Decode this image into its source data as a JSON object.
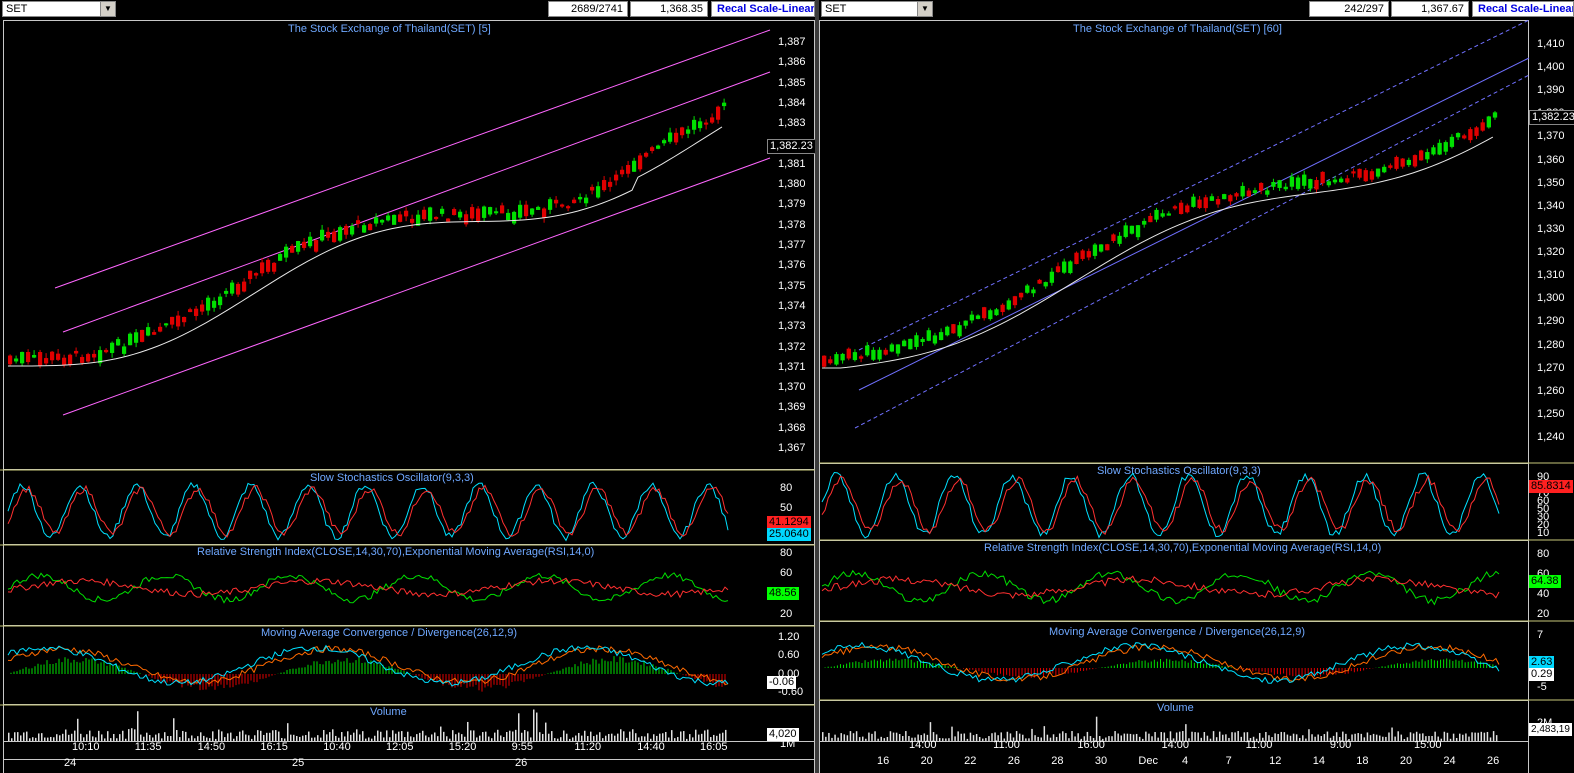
{
  "left": {
    "symbol": "SET",
    "counter": "2689/2741",
    "price": "1,368.35",
    "recal": "Recal Scale-Linear",
    "main_title": "The Stock Exchange of Thailand(SET) [5]",
    "price_axis": [
      "1,387",
      "1,386",
      "1,385",
      "1,384",
      "1,383",
      "1,382",
      "1,381",
      "1,380",
      "1,379",
      "1,378",
      "1,377",
      "1,376",
      "1,375",
      "1,374",
      "1,373",
      "1,372",
      "1,371",
      "1,370",
      "1,369",
      "1,368",
      "1,367"
    ],
    "last_price": "1,382.23",
    "stoch_title": "Slow Stochastics Oscillator(9,3,3)",
    "stoch_axis": [
      "80",
      "50",
      "20"
    ],
    "stoch_tag1": "41.1294",
    "stoch_tag2": "25.0640",
    "rsi_title": "Relative Strength Index(CLOSE,14,30,70),Exponential Moving Average(RSI,14,0)",
    "rsi_axis": [
      "80",
      "60",
      "40",
      "20"
    ],
    "rsi_tag": "48.56",
    "macd_title": "Moving Average Convergence / Divergence(26,12,9)",
    "macd_axis": [
      "1.20",
      "0.60",
      "0.00",
      "-0.60"
    ],
    "macd_tag": "-0.06",
    "vol_title": "Volume",
    "vol_axis": [
      "1M"
    ],
    "vol_tag": "4,020",
    "time_labels": [
      "10:10",
      "11:35",
      "14:50",
      "16:15",
      "10:40",
      "12:05",
      "15:20",
      "9:55",
      "11:20",
      "14:40",
      "16:05"
    ],
    "day_labels": [
      "24",
      "25",
      "26"
    ]
  },
  "right": {
    "symbol": "SET",
    "counter": "242/297",
    "price": "1,367.67",
    "recal": "Recal Scale-Linear",
    "main_title": "The Stock Exchange of Thailand(SET) [60]",
    "price_axis": [
      "1,410",
      "1,400",
      "1,390",
      "1,380",
      "1,370",
      "1,360",
      "1,350",
      "1,340",
      "1,330",
      "1,320",
      "1,310",
      "1,300",
      "1,290",
      "1,280",
      "1,270",
      "1,260",
      "1,250",
      "1,240"
    ],
    "last_price": "1,382.23",
    "stoch_title": "Slow Stochastics Oscillator(9,3,3)",
    "stoch_axis": [
      "90",
      "80",
      "70",
      "60",
      "50",
      "30",
      "20",
      "10"
    ],
    "stoch_tag1": "85.8314",
    "rsi_title": "Relative Strength Index(CLOSE,14,30,70),Exponential Moving Average(RSI,14,0)",
    "rsi_axis": [
      "80",
      "60",
      "40",
      "20"
    ],
    "rsi_tag": "64.38",
    "macd_title": "Moving Average Convergence / Divergence(26,12,9)",
    "macd_axis": [
      "7",
      "2",
      "-5"
    ],
    "macd_tag": "2.63",
    "macd_tag2": "0.29",
    "vol_title": "Volume",
    "vol_axis": [
      "2M"
    ],
    "vol_tag": "2,483,19",
    "time_labels": [
      "14:00",
      "11:00",
      "16:00",
      "14:00",
      "11:00",
      "9:00",
      "15:00"
    ],
    "day_labels": [
      "16",
      "20",
      "22",
      "26",
      "28",
      "30",
      "Dec",
      "4",
      "7",
      "12",
      "14",
      "18",
      "20",
      "24",
      "26"
    ]
  },
  "colors": {
    "up": "#00e000",
    "down": "#e00000",
    "ma": "#e8e8e8",
    "channel_left": "#ff66ff",
    "channel_right": "#7070ff",
    "stoch_k": "#00e0ff",
    "stoch_d": "#ff3030",
    "rsi": "#00e000",
    "rsi_ema": "#ff3030",
    "title": "#6fa8ff"
  }
}
